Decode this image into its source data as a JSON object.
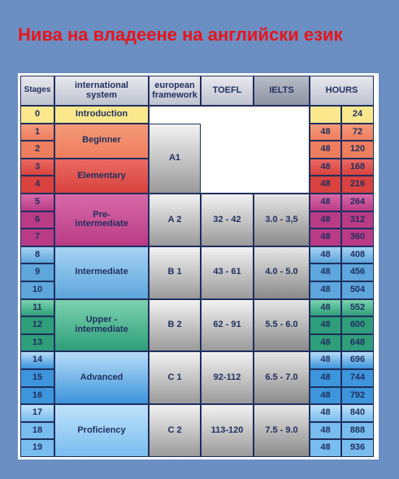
{
  "title": "Нива на владеене на английски език",
  "table": {
    "header": [
      "Stages",
      "international\nsystem",
      "european\nframework",
      "TOEFL",
      "IELTS",
      "HOURS"
    ],
    "bands": [
      {
        "levels": [
          {
            "name": "Introduction",
            "stages": [
              {
                "stage": "0",
                "total": "24"
              }
            ]
          }
        ]
      },
      {
        "framework": "A1",
        "levels": [
          {
            "name": "Beginner",
            "stages": [
              {
                "stage": "1",
                "hours": "48",
                "total": "72"
              },
              {
                "stage": "2",
                "hours": "48",
                "total": "120"
              }
            ]
          },
          {
            "name": "Elementary",
            "stages": [
              {
                "stage": "3",
                "hours": "48",
                "total": "168"
              },
              {
                "stage": "4",
                "hours": "48",
                "total": "216"
              }
            ]
          }
        ]
      },
      {
        "framework": "A 2",
        "toefl": "32 - 42",
        "ielts": "3.0 - 3,5",
        "levels": [
          {
            "name": "Pre-\nintermediate",
            "stages": [
              {
                "stage": "5",
                "hours": "48",
                "total": "264"
              },
              {
                "stage": "6",
                "hours": "48",
                "total": "312"
              },
              {
                "stage": "7",
                "hours": "48",
                "total": "360"
              }
            ]
          }
        ]
      },
      {
        "framework": "B 1",
        "toefl": "43 - 61",
        "ielts": "4.0 - 5.0",
        "levels": [
          {
            "name": "Intermediate",
            "stages": [
              {
                "stage": "8",
                "hours": "48",
                "total": "408"
              },
              {
                "stage": "9",
                "hours": "48",
                "total": "456"
              },
              {
                "stage": "10",
                "hours": "48",
                "total": "504"
              }
            ]
          }
        ]
      },
      {
        "framework": "B 2",
        "toefl": "62 - 91",
        "ielts": "5.5 - 6.0",
        "levels": [
          {
            "name": "Upper -\nintermediate",
            "stages": [
              {
                "stage": "11",
                "hours": "48",
                "total": "552"
              },
              {
                "stage": "12",
                "hours": "48",
                "total": "600"
              },
              {
                "stage": "13",
                "hours": "48",
                "total": "648"
              }
            ]
          }
        ]
      },
      {
        "framework": "C 1",
        "toefl": "92-112",
        "ielts": "6.5 - 7.0",
        "levels": [
          {
            "name": "Advanced",
            "stages": [
              {
                "stage": "14",
                "hours": "48",
                "total": "696"
              },
              {
                "stage": "15",
                "hours": "48",
                "total": "744"
              },
              {
                "stage": "16",
                "hours": "48",
                "total": "792"
              }
            ]
          }
        ]
      },
      {
        "framework": "C 2",
        "toefl": "113-120",
        "ielts": "7.5 - 9.0",
        "levels": [
          {
            "name": "Proficiency",
            "stages": [
              {
                "stage": "17",
                "hours": "48",
                "total": "840"
              },
              {
                "stage": "18",
                "hours": "48",
                "total": "888"
              },
              {
                "stage": "19",
                "hours": "48",
                "total": "936"
              }
            ]
          }
        ]
      }
    ]
  }
}
